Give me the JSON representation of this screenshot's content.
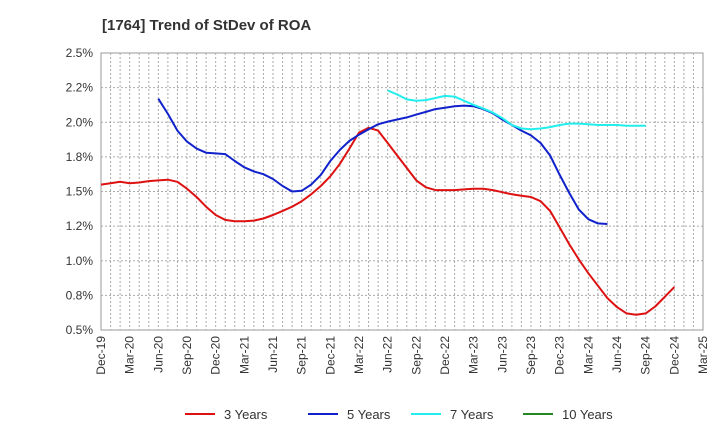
{
  "chart_data": {
    "type": "line",
    "title": "[1764]  Trend of StDev of ROA",
    "xlabel": "",
    "ylabel": "",
    "x_ticks": [
      "Dec-19",
      "Mar-20",
      "Jun-20",
      "Sep-20",
      "Dec-20",
      "Mar-21",
      "Jun-21",
      "Sep-21",
      "Dec-21",
      "Mar-22",
      "Jun-22",
      "Sep-22",
      "Dec-22",
      "Mar-23",
      "Jun-23",
      "Sep-23",
      "Dec-23",
      "Mar-24",
      "Jun-24",
      "Sep-24",
      "Dec-24",
      "Mar-25"
    ],
    "y_ticks": [
      "0.5%",
      "0.8%",
      "1.0%",
      "1.2%",
      "1.5%",
      "1.8%",
      "2.0%",
      "2.2%",
      "2.5%"
    ],
    "ylim": [
      0.5,
      2.5
    ],
    "grid": true,
    "legend_position": "bottom",
    "series": [
      {
        "name": "3 Years",
        "color": "#dd1111",
        "start_index": 0,
        "values": [
          1.55,
          1.56,
          1.57,
          1.56,
          1.565,
          1.575,
          1.58,
          1.585,
          1.57,
          1.52,
          1.46,
          1.39,
          1.33,
          1.295,
          1.285,
          1.285,
          1.29,
          1.305,
          1.33,
          1.36,
          1.39,
          1.43,
          1.48,
          1.54,
          1.61,
          1.7,
          1.81,
          1.925,
          1.96,
          1.94,
          1.85,
          1.76,
          1.67,
          1.58,
          1.53,
          1.51,
          1.51,
          1.51,
          1.515,
          1.52,
          1.52,
          1.51,
          1.495,
          1.48,
          1.47,
          1.46,
          1.43,
          1.36,
          1.24,
          1.12,
          1.01,
          0.91,
          0.82,
          0.73,
          0.665,
          0.62,
          0.61,
          0.62,
          0.67,
          0.74,
          0.81
        ]
      },
      {
        "name": "5 Years",
        "color": "#1122cc",
        "start_index": 6,
        "values": [
          2.17,
          2.06,
          1.94,
          1.86,
          1.81,
          1.78,
          1.775,
          1.77,
          1.72,
          1.675,
          1.645,
          1.625,
          1.59,
          1.54,
          1.5,
          1.505,
          1.55,
          1.62,
          1.72,
          1.8,
          1.865,
          1.91,
          1.95,
          1.985,
          2.005,
          2.02,
          2.035,
          2.055,
          2.075,
          2.095,
          2.105,
          2.115,
          2.12,
          2.115,
          2.095,
          2.065,
          2.02,
          1.98,
          1.94,
          1.905,
          1.85,
          1.76,
          1.62,
          1.49,
          1.37,
          1.3,
          1.27,
          1.265
        ]
      },
      {
        "name": "7 Years",
        "color": "#22eeee",
        "start_index": 30,
        "values": [
          2.23,
          2.2,
          2.165,
          2.155,
          2.16,
          2.175,
          2.19,
          2.185,
          2.155,
          2.125,
          2.1,
          2.07,
          2.03,
          1.98,
          1.955,
          1.95,
          1.955,
          1.965,
          1.98,
          1.99,
          1.99,
          1.985,
          1.98,
          1.98,
          1.98,
          1.975,
          1.975,
          1.975
        ]
      },
      {
        "name": "10 Years",
        "color": "#228822",
        "start_index": 0,
        "values": []
      }
    ]
  }
}
